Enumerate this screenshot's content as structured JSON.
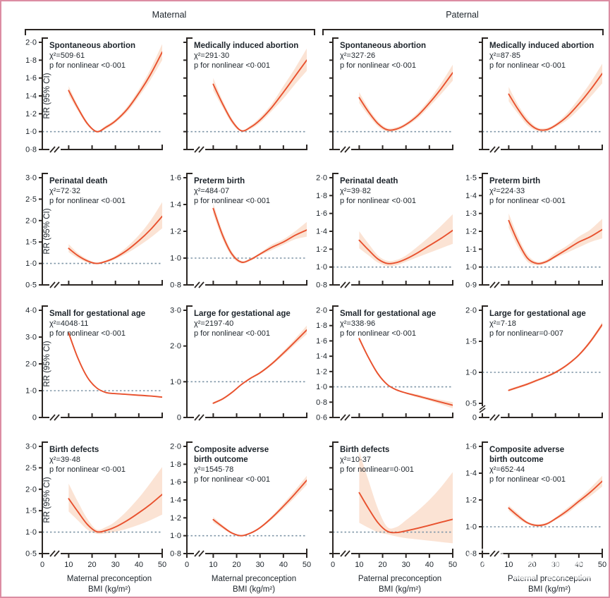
{
  "figure": {
    "group_headers": [
      "Maternal",
      "Paternal"
    ],
    "ylabel": "RR (95% CI)",
    "x_tick_labels": [
      "0",
      "10",
      "20",
      "30",
      "40",
      "50"
    ],
    "x_titles": {
      "maternal": [
        "Maternal preconception",
        "BMI (kg/m²)"
      ],
      "paternal": [
        "Paternal preconception",
        "BMI (kg/m²)"
      ]
    },
    "watermark_text": "医咖会",
    "watermark_logo_glyph": "医",
    "colors": {
      "curve": "#e8512e",
      "band": "#fbe3d4",
      "ref_line": "#8097a8",
      "axis": "#2b2623",
      "text": "#1d242b",
      "border": "#dc8da3"
    }
  },
  "chart_data": {
    "type": "line",
    "x_axis": "preconception BMI (kg/m2)",
    "x_range_shown": [
      0,
      50
    ],
    "curve_x_range": [
      10,
      50
    ],
    "reference_line": 1.0,
    "x": [
      10,
      14,
      18,
      22,
      26,
      30,
      35,
      40,
      45,
      50
    ],
    "panels": [
      {
        "group": "maternal",
        "title_lines": [
          "Spontaneous abortion"
        ],
        "chi2": "χ²=509·61",
        "p": "p for nonlinear <0·001",
        "ylim": [
          0.8,
          2.0
        ],
        "y_ticks": [
          2.0,
          1.8,
          1.6,
          1.4,
          1.2,
          1.0,
          0.8
        ],
        "y_tick_labels": [
          "2·0",
          "1·8",
          "1·6",
          "1·4",
          "1·2",
          "1·0",
          "0·8"
        ],
        "rr": [
          1.46,
          1.26,
          1.09,
          1.0,
          1.05,
          1.12,
          1.25,
          1.43,
          1.64,
          1.89
        ],
        "lo": [
          1.41,
          1.23,
          1.07,
          0.99,
          1.03,
          1.1,
          1.22,
          1.39,
          1.58,
          1.8
        ],
        "hi": [
          1.51,
          1.29,
          1.11,
          1.01,
          1.07,
          1.14,
          1.28,
          1.47,
          1.7,
          1.98
        ]
      },
      {
        "group": "maternal",
        "title_lines": [
          "Medically induced abortion"
        ],
        "chi2": "χ²=291·30",
        "p": "p for nonlinear <0·001",
        "ylim": [
          0.8,
          2.0
        ],
        "y_ticks": [
          2.0,
          1.8,
          1.6,
          1.4,
          1.2,
          1.0,
          0.8
        ],
        "y_tick_labels": [],
        "rr": [
          1.53,
          1.31,
          1.12,
          1.01,
          1.05,
          1.13,
          1.27,
          1.44,
          1.62,
          1.8
        ],
        "lo": [
          1.46,
          1.27,
          1.09,
          1.0,
          1.03,
          1.1,
          1.23,
          1.37,
          1.53,
          1.68
        ],
        "hi": [
          1.6,
          1.35,
          1.15,
          1.02,
          1.07,
          1.16,
          1.31,
          1.51,
          1.71,
          1.93
        ]
      },
      {
        "group": "paternal",
        "title_lines": [
          "Spontaneous abortion"
        ],
        "chi2": "χ²=327·26",
        "p": "p for nonlinear <0·001",
        "ylim": [
          0.8,
          2.0
        ],
        "y_ticks": [
          2.0,
          1.8,
          1.6,
          1.4,
          1.2,
          1.0,
          0.8
        ],
        "y_tick_labels": [],
        "rr": [
          1.38,
          1.22,
          1.09,
          1.02,
          1.03,
          1.08,
          1.18,
          1.32,
          1.48,
          1.66
        ],
        "lo": [
          1.32,
          1.18,
          1.06,
          1.0,
          1.01,
          1.06,
          1.15,
          1.28,
          1.42,
          1.57
        ],
        "hi": [
          1.44,
          1.26,
          1.12,
          1.04,
          1.05,
          1.1,
          1.21,
          1.36,
          1.54,
          1.75
        ]
      },
      {
        "group": "paternal",
        "title_lines": [
          "Medically induced abortion"
        ],
        "chi2": "χ²=87·85",
        "p": "p for nonlinear <0·001",
        "ylim": [
          0.8,
          2.0
        ],
        "y_ticks": [
          2.0,
          1.8,
          1.6,
          1.4,
          1.2,
          1.0,
          0.8
        ],
        "y_tick_labels": [],
        "rr": [
          1.42,
          1.25,
          1.11,
          1.03,
          1.02,
          1.07,
          1.17,
          1.31,
          1.47,
          1.65
        ],
        "lo": [
          1.34,
          1.2,
          1.07,
          1.01,
          1.0,
          1.05,
          1.13,
          1.25,
          1.39,
          1.54
        ],
        "hi": [
          1.5,
          1.3,
          1.15,
          1.05,
          1.04,
          1.09,
          1.21,
          1.37,
          1.55,
          1.76
        ]
      },
      {
        "group": "maternal",
        "title_lines": [
          "Perinatal death"
        ],
        "chi2": "χ²=72·32",
        "p": "p for nonlinear <0·001",
        "ylim": [
          0.5,
          3.0
        ],
        "y_ticks": [
          3.0,
          2.5,
          2.0,
          1.5,
          1.0,
          0.5
        ],
        "y_tick_labels": [
          "3·0",
          "2·5",
          "2·0",
          "1·5",
          "1·0",
          "0·5"
        ],
        "rr": [
          1.35,
          1.18,
          1.06,
          1.0,
          1.05,
          1.14,
          1.31,
          1.53,
          1.79,
          2.1
        ],
        "lo": [
          1.26,
          1.12,
          1.02,
          0.98,
          1.02,
          1.1,
          1.24,
          1.41,
          1.6,
          1.82
        ],
        "hi": [
          1.45,
          1.24,
          1.1,
          1.02,
          1.08,
          1.18,
          1.39,
          1.66,
          2.0,
          2.43
        ]
      },
      {
        "group": "maternal",
        "title_lines": [
          "Preterm birth"
        ],
        "chi2": "χ²=484·07",
        "p": "p for nonlinear <0·001",
        "ylim": [
          0.8,
          1.6
        ],
        "y_ticks": [
          1.6,
          1.4,
          1.2,
          1.0,
          0.8
        ],
        "y_tick_labels": [
          "1·6",
          "1·4",
          "1·2",
          "1·0",
          "0·8"
        ],
        "rr": [
          1.37,
          1.17,
          1.03,
          0.97,
          0.99,
          1.03,
          1.08,
          1.12,
          1.17,
          1.21
        ],
        "lo": [
          1.33,
          1.14,
          1.01,
          0.96,
          0.98,
          1.02,
          1.06,
          1.1,
          1.14,
          1.16
        ],
        "hi": [
          1.41,
          1.2,
          1.05,
          0.98,
          1.0,
          1.04,
          1.1,
          1.14,
          1.2,
          1.27
        ]
      },
      {
        "group": "paternal",
        "title_lines": [
          "Perinatal death"
        ],
        "chi2": "χ²=39·82",
        "p": "p for nonlinear <0·001",
        "ylim": [
          0.8,
          2.0
        ],
        "y_ticks": [
          2.0,
          1.8,
          1.6,
          1.4,
          1.2,
          1.0,
          0.8
        ],
        "y_tick_labels": [
          "2·0",
          "1·8",
          "1·6",
          "1·4",
          "1·2",
          "1·0",
          "0·8"
        ],
        "rr": [
          1.3,
          1.19,
          1.09,
          1.04,
          1.05,
          1.09,
          1.16,
          1.24,
          1.32,
          1.41
        ],
        "lo": [
          1.21,
          1.13,
          1.05,
          1.01,
          1.02,
          1.06,
          1.11,
          1.16,
          1.21,
          1.26
        ],
        "hi": [
          1.4,
          1.26,
          1.13,
          1.07,
          1.08,
          1.13,
          1.23,
          1.34,
          1.46,
          1.59
        ]
      },
      {
        "group": "paternal",
        "title_lines": [
          "Preterm birth"
        ],
        "chi2": "χ²=224·33",
        "p": "p for nonlinear <0·001",
        "ylim": [
          0.9,
          1.5
        ],
        "y_ticks": [
          1.5,
          1.4,
          1.3,
          1.2,
          1.1,
          1.0,
          0.9
        ],
        "y_tick_labels": [
          "1·5",
          "1·4",
          "1·3",
          "1·2",
          "1·1",
          "1·0",
          "0·9"
        ],
        "rr": [
          1.26,
          1.14,
          1.05,
          1.02,
          1.03,
          1.06,
          1.1,
          1.14,
          1.17,
          1.21
        ],
        "lo": [
          1.22,
          1.11,
          1.03,
          1.01,
          1.02,
          1.05,
          1.08,
          1.11,
          1.14,
          1.16
        ],
        "hi": [
          1.3,
          1.17,
          1.07,
          1.03,
          1.04,
          1.08,
          1.12,
          1.17,
          1.21,
          1.27
        ]
      },
      {
        "group": "maternal",
        "title_lines": [
          "Small for gestational age"
        ],
        "chi2": "χ²=4048·11",
        "p": "p for nonlinear <0·001",
        "ylim": [
          0,
          4.0
        ],
        "y_ticks": [
          4.0,
          3.0,
          2.0,
          1.0,
          0
        ],
        "y_tick_labels": [
          "4·0",
          "3·0",
          "2·0",
          "1·0",
          "0"
        ],
        "rr": [
          3.15,
          2.2,
          1.5,
          1.1,
          0.93,
          0.89,
          0.86,
          0.83,
          0.8,
          0.76
        ],
        "lo": [
          3.05,
          2.14,
          1.46,
          1.08,
          0.91,
          0.87,
          0.84,
          0.81,
          0.78,
          0.73
        ],
        "hi": [
          3.25,
          2.26,
          1.54,
          1.12,
          0.95,
          0.91,
          0.88,
          0.85,
          0.82,
          0.79
        ]
      },
      {
        "group": "maternal",
        "title_lines": [
          "Large for gestational age"
        ],
        "chi2": "χ²=2197·40",
        "p": "p for nonlinear <0·001",
        "ylim": [
          0,
          3.0
        ],
        "y_ticks": [
          3.0,
          2.0,
          1.0,
          0
        ],
        "y_tick_labels": [
          "3·0",
          "2·0",
          "1·0",
          "0"
        ],
        "rr": [
          0.4,
          0.52,
          0.7,
          0.92,
          1.1,
          1.25,
          1.5,
          1.8,
          2.12,
          2.45
        ],
        "lo": [
          0.37,
          0.49,
          0.67,
          0.9,
          1.07,
          1.22,
          1.46,
          1.74,
          2.04,
          2.33
        ],
        "hi": [
          0.43,
          0.55,
          0.73,
          0.94,
          1.13,
          1.28,
          1.54,
          1.86,
          2.2,
          2.57
        ]
      },
      {
        "group": "paternal",
        "title_lines": [
          "Small for gestational age"
        ],
        "chi2": "χ²=338·96",
        "p": "p for nonlinear <0·001",
        "ylim": [
          0.6,
          2.0
        ],
        "y_ticks": [
          2.0,
          1.8,
          1.6,
          1.4,
          1.2,
          1.0,
          0.8,
          0.6
        ],
        "y_tick_labels": [
          "2·0",
          "1·8",
          "1·6",
          "1·4",
          "1·2",
          "1·0",
          "0·8",
          "0·6"
        ],
        "rr": [
          1.63,
          1.38,
          1.17,
          1.03,
          0.96,
          0.92,
          0.88,
          0.84,
          0.8,
          0.76
        ],
        "lo": [
          1.6,
          1.36,
          1.15,
          1.02,
          0.95,
          0.91,
          0.86,
          0.82,
          0.77,
          0.72
        ],
        "hi": [
          1.66,
          1.4,
          1.19,
          1.04,
          0.97,
          0.93,
          0.9,
          0.86,
          0.83,
          0.8
        ]
      },
      {
        "group": "paternal",
        "title_lines": [
          "Large for gestational age"
        ],
        "chi2": "χ²=7·18",
        "p": "p for nonlinear=0·007",
        "ylim": [
          0.5,
          2.0
        ],
        "y_break_zero": true,
        "y_ticks": [
          2.0,
          1.5,
          1.0,
          0.5
        ],
        "y_tick_labels": [
          "2·0",
          "1·5",
          "1·0",
          "0·5"
        ],
        "rr": [
          0.71,
          0.76,
          0.81,
          0.87,
          0.93,
          1.0,
          1.12,
          1.28,
          1.5,
          1.77
        ],
        "lo": [
          0.69,
          0.74,
          0.79,
          0.85,
          0.91,
          0.98,
          1.1,
          1.26,
          1.47,
          1.73
        ],
        "hi": [
          0.73,
          0.78,
          0.83,
          0.89,
          0.95,
          1.02,
          1.14,
          1.3,
          1.53,
          1.81
        ]
      },
      {
        "group": "maternal",
        "title_lines": [
          "Birth defects"
        ],
        "chi2": "χ²=39·48",
        "p": "p for nonlinear <0·001",
        "ylim": [
          0.5,
          3.0
        ],
        "y_ticks": [
          3.0,
          2.5,
          2.0,
          1.5,
          1.0,
          0.5
        ],
        "y_tick_labels": [
          "3·0",
          "2·5",
          "2·0",
          "1·5",
          "1·0",
          "0·5"
        ],
        "rr": [
          1.78,
          1.47,
          1.18,
          1.01,
          1.04,
          1.12,
          1.27,
          1.45,
          1.65,
          1.88
        ],
        "lo": [
          1.48,
          1.27,
          1.06,
          0.96,
          0.97,
          1.01,
          1.08,
          1.17,
          1.28,
          1.41
        ],
        "hi": [
          2.13,
          1.7,
          1.31,
          1.06,
          1.12,
          1.25,
          1.5,
          1.8,
          2.15,
          2.52
        ]
      },
      {
        "group": "maternal",
        "title_lines": [
          "Composite adverse",
          "birth outcome"
        ],
        "chi2": "χ²=1545·78",
        "p": "p for nonlinear <0·001",
        "ylim": [
          0.8,
          2.0
        ],
        "y_ticks": [
          2.0,
          1.8,
          1.6,
          1.4,
          1.2,
          1.0,
          0.8
        ],
        "y_tick_labels": [
          "2·0",
          "1·8",
          "1·6",
          "1·4",
          "1·2",
          "1·0",
          "0·8"
        ],
        "rr": [
          1.18,
          1.1,
          1.03,
          1.0,
          1.03,
          1.09,
          1.2,
          1.33,
          1.47,
          1.62
        ],
        "lo": [
          1.15,
          1.08,
          1.02,
          0.99,
          1.02,
          1.08,
          1.18,
          1.3,
          1.43,
          1.57
        ],
        "hi": [
          1.21,
          1.12,
          1.04,
          1.01,
          1.04,
          1.1,
          1.22,
          1.36,
          1.51,
          1.67
        ]
      },
      {
        "group": "paternal",
        "title_lines": [
          "Birth defects"
        ],
        "chi2": "χ²=10·37",
        "p": "p for nonlinear=0·001",
        "ylim": [
          0.5,
          3.0
        ],
        "y_ticks": [
          3.0,
          2.5,
          2.0,
          1.5,
          1.0,
          0.5
        ],
        "y_tick_labels": [],
        "rr": [
          1.92,
          1.55,
          1.22,
          1.02,
          0.99,
          1.03,
          1.09,
          1.16,
          1.23,
          1.3
        ],
        "lo": [
          1.22,
          1.1,
          1.0,
          0.95,
          0.9,
          0.86,
          0.83,
          0.8,
          0.77,
          0.74
        ],
        "hi": [
          2.88,
          2.2,
          1.55,
          1.12,
          1.12,
          1.28,
          1.5,
          1.75,
          2.05,
          2.4
        ]
      },
      {
        "group": "paternal",
        "title_lines": [
          "Composite adverse",
          "birth outcome"
        ],
        "chi2": "χ²=652·44",
        "p": "p for nonlinear <0·001",
        "ylim": [
          0.8,
          1.6
        ],
        "y_ticks": [
          1.6,
          1.4,
          1.2,
          1.0,
          0.8
        ],
        "y_tick_labels": [
          "1·6",
          "1·4",
          "1·2",
          "1·0",
          "0·8"
        ],
        "rr": [
          1.14,
          1.08,
          1.03,
          1.01,
          1.02,
          1.06,
          1.12,
          1.19,
          1.26,
          1.34
        ],
        "lo": [
          1.12,
          1.06,
          1.02,
          1.0,
          1.01,
          1.05,
          1.1,
          1.17,
          1.23,
          1.3
        ],
        "hi": [
          1.16,
          1.1,
          1.04,
          1.02,
          1.03,
          1.07,
          1.14,
          1.21,
          1.29,
          1.38
        ]
      }
    ]
  }
}
